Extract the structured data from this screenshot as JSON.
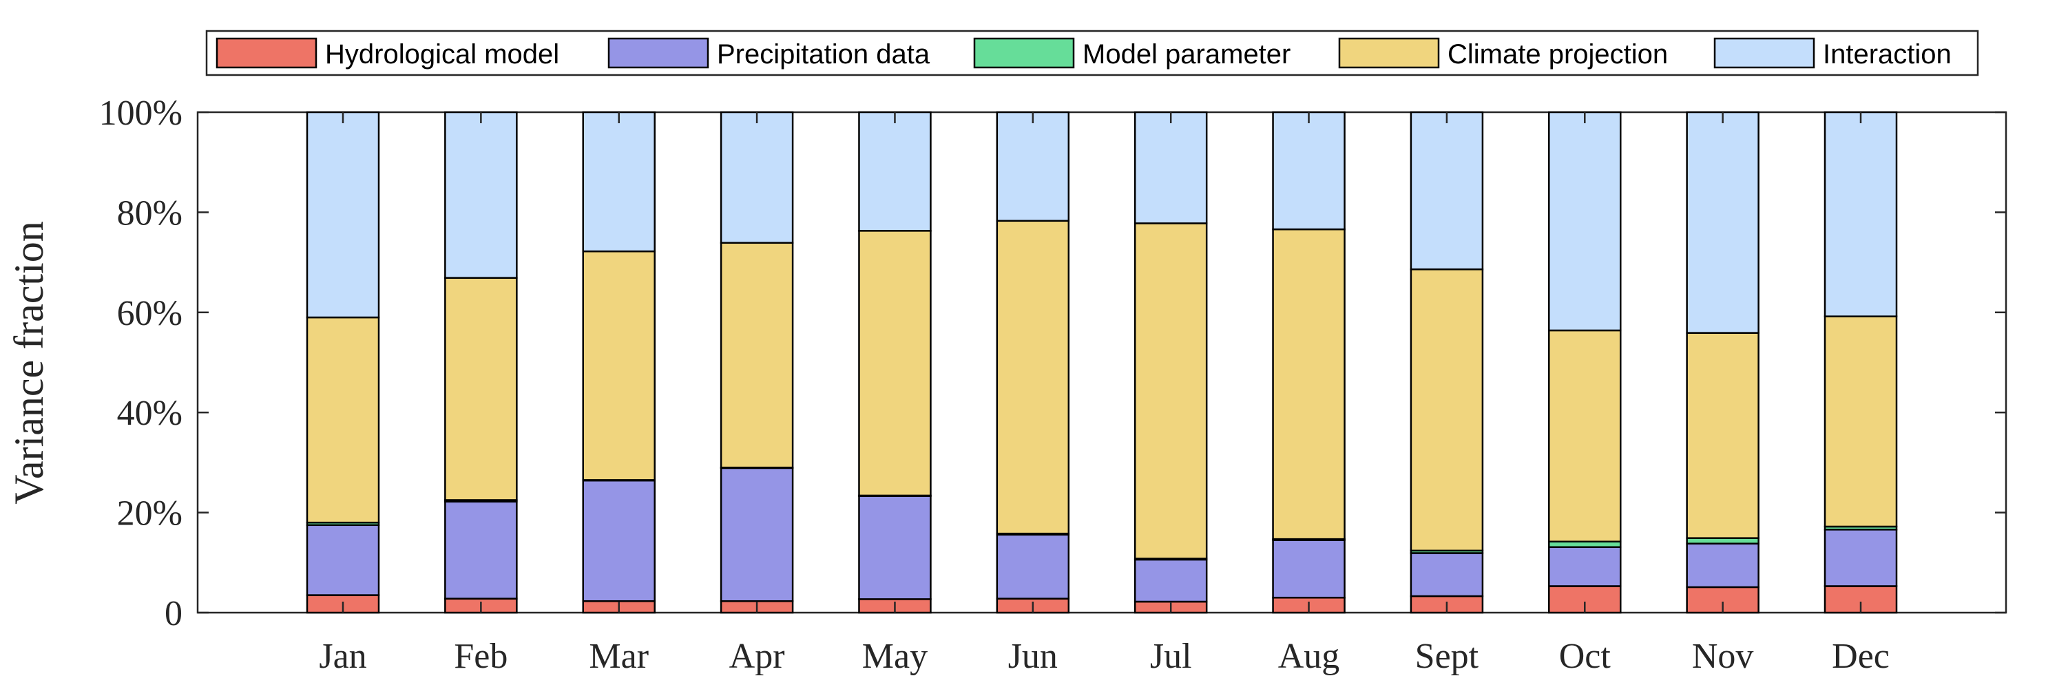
{
  "chart_data": {
    "type": "bar",
    "stacked": true,
    "title": "",
    "xlabel": "",
    "ylabel": "Variance fraction",
    "ylim": [
      0,
      100
    ],
    "yticks": [
      0,
      20,
      40,
      60,
      80,
      100
    ],
    "ytick_labels": [
      "0",
      "20%",
      "40%",
      "60%",
      "80%",
      "100%"
    ],
    "legend_position": "top",
    "categories": [
      "Jan",
      "Feb",
      "Mar",
      "Apr",
      "May",
      "Jun",
      "Jul",
      "Aug",
      "Sept",
      "Oct",
      "Nov",
      "Dec"
    ],
    "series": [
      {
        "name": "Hydrological model",
        "color": "#EE7466",
        "values": [
          3.5,
          2.8,
          2.3,
          2.3,
          2.7,
          2.8,
          2.2,
          3.0,
          3.3,
          5.3,
          5.1,
          5.3
        ]
      },
      {
        "name": "Precipitation data",
        "color": "#9595E6",
        "values": [
          14.0,
          19.4,
          24.1,
          26.6,
          20.6,
          12.8,
          8.4,
          11.5,
          8.6,
          7.8,
          8.7,
          11.3
        ]
      },
      {
        "name": "Model parameter",
        "color": "#66DD99",
        "values": [
          0.5,
          0.3,
          0.1,
          0.1,
          0.1,
          0.2,
          0.2,
          0.2,
          0.5,
          1.1,
          1.1,
          0.6
        ]
      },
      {
        "name": "Climate projection",
        "color": "#F0D57E",
        "values": [
          41.0,
          44.4,
          45.7,
          44.9,
          52.9,
          62.5,
          67.0,
          61.9,
          56.2,
          42.2,
          41.0,
          42.0
        ]
      },
      {
        "name": "Interaction",
        "color": "#C4DEFC",
        "values": [
          41.0,
          33.1,
          27.8,
          26.1,
          23.7,
          21.7,
          22.2,
          23.4,
          31.4,
          43.6,
          44.1,
          40.8
        ]
      }
    ]
  }
}
